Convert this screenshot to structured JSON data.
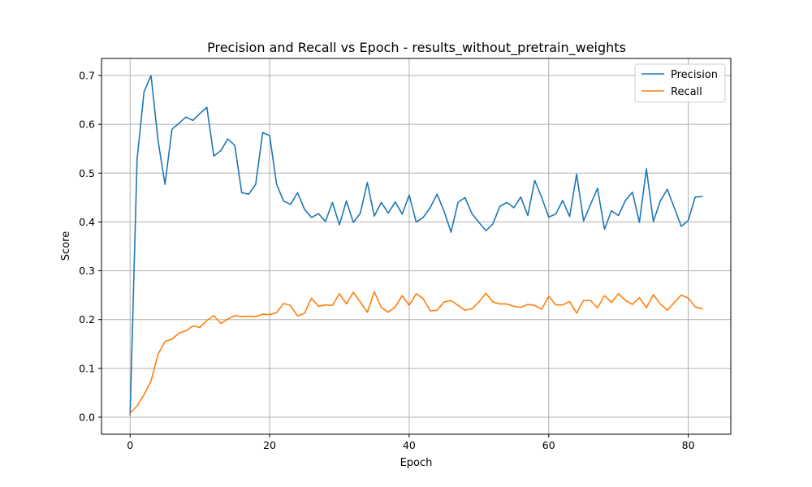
{
  "chart_data": {
    "type": "line",
    "title": "Precision and Recall vs Epoch - results_without_pretrain_weights",
    "xlabel": "Epoch",
    "ylabel": "Score",
    "xlim": [
      -4.1,
      86.1
    ],
    "ylim": [
      -0.035,
      0.735
    ],
    "xticks": [
      0,
      20,
      40,
      60,
      80
    ],
    "yticks": [
      0.0,
      0.1,
      0.2,
      0.3,
      0.4,
      0.5,
      0.6,
      0.7
    ],
    "xtick_labels": [
      "0",
      "20",
      "40",
      "60",
      "80"
    ],
    "ytick_labels": [
      "0.0",
      "0.1",
      "0.2",
      "0.3",
      "0.4",
      "0.5",
      "0.6",
      "0.7"
    ],
    "grid": true,
    "legend_position": "top-right",
    "x": [
      0,
      1,
      2,
      3,
      4,
      5,
      6,
      7,
      8,
      9,
      10,
      11,
      12,
      13,
      14,
      15,
      16,
      17,
      18,
      19,
      20,
      21,
      22,
      23,
      24,
      25,
      26,
      27,
      28,
      29,
      30,
      31,
      32,
      33,
      34,
      35,
      36,
      37,
      38,
      39,
      40,
      41,
      42,
      43,
      44,
      45,
      46,
      47,
      48,
      49,
      50,
      51,
      52,
      53,
      54,
      55,
      56,
      57,
      58,
      59,
      60,
      61,
      62,
      63,
      64,
      65,
      66,
      67,
      68,
      69,
      70,
      71,
      72,
      73,
      74,
      75,
      76,
      77,
      78,
      79,
      80,
      81,
      82
    ],
    "series": [
      {
        "name": "Precision",
        "color": "#1f77b4",
        "values": [
          0.005,
          0.528,
          0.667,
          0.7,
          0.567,
          0.477,
          0.59,
          0.602,
          0.615,
          0.608,
          0.622,
          0.635,
          0.535,
          0.546,
          0.57,
          0.557,
          0.46,
          0.457,
          0.477,
          0.583,
          0.577,
          0.477,
          0.443,
          0.436,
          0.46,
          0.426,
          0.409,
          0.417,
          0.401,
          0.44,
          0.394,
          0.443,
          0.399,
          0.418,
          0.481,
          0.412,
          0.44,
          0.418,
          0.441,
          0.416,
          0.455,
          0.4,
          0.409,
          0.429,
          0.457,
          0.422,
          0.379,
          0.44,
          0.45,
          0.417,
          0.399,
          0.382,
          0.396,
          0.432,
          0.44,
          0.429,
          0.451,
          0.413,
          0.485,
          0.45,
          0.41,
          0.416,
          0.444,
          0.411,
          0.498,
          0.402,
          0.436,
          0.469,
          0.385,
          0.423,
          0.413,
          0.444,
          0.461,
          0.399,
          0.509,
          0.401,
          0.443,
          0.467,
          0.429,
          0.391,
          0.403,
          0.451,
          0.452
        ]
      },
      {
        "name": "Recall",
        "color": "#ff7f0e",
        "values": [
          0.008,
          0.023,
          0.046,
          0.074,
          0.129,
          0.155,
          0.16,
          0.172,
          0.177,
          0.187,
          0.184,
          0.198,
          0.208,
          0.192,
          0.201,
          0.208,
          0.206,
          0.207,
          0.206,
          0.211,
          0.21,
          0.214,
          0.233,
          0.229,
          0.207,
          0.213,
          0.244,
          0.227,
          0.23,
          0.229,
          0.253,
          0.232,
          0.256,
          0.236,
          0.215,
          0.257,
          0.225,
          0.215,
          0.226,
          0.249,
          0.229,
          0.253,
          0.243,
          0.218,
          0.219,
          0.236,
          0.239,
          0.229,
          0.219,
          0.222,
          0.236,
          0.254,
          0.236,
          0.232,
          0.232,
          0.227,
          0.225,
          0.231,
          0.229,
          0.221,
          0.248,
          0.23,
          0.23,
          0.237,
          0.213,
          0.239,
          0.239,
          0.224,
          0.249,
          0.235,
          0.253,
          0.239,
          0.231,
          0.245,
          0.224,
          0.251,
          0.232,
          0.219,
          0.235,
          0.25,
          0.244,
          0.226,
          0.222
        ]
      }
    ]
  }
}
